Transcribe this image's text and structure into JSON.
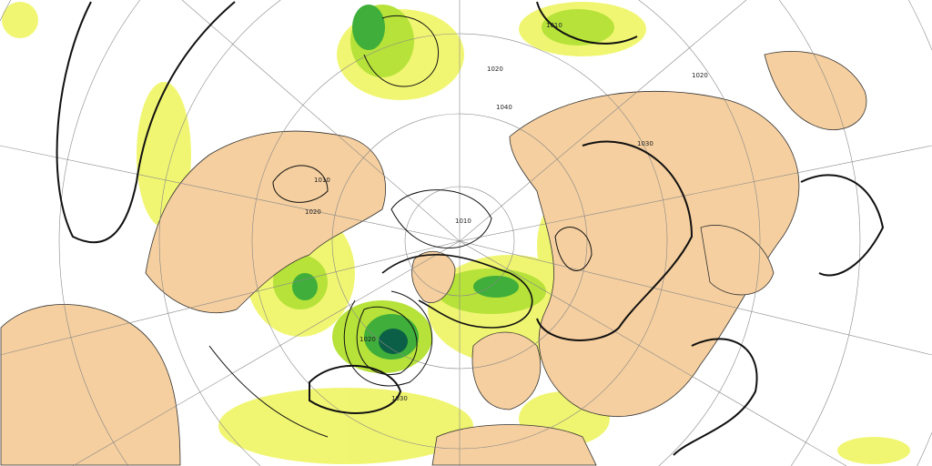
{
  "map": {
    "colors": {
      "land": "#f5cf9f",
      "ocean": "#ffffff",
      "precip_light": "#f0f56a",
      "precip_mid": "#b6e23a",
      "precip_heavy": "#3fae3a",
      "precip_extreme": "#0b5f46",
      "isobar": "#111111",
      "graticule": "#888888"
    },
    "isobar_labels": [
      "1010",
      "1020",
      "1030",
      "1040",
      "1010",
      "1020",
      "1030",
      "1020",
      "1010",
      "1020"
    ]
  }
}
